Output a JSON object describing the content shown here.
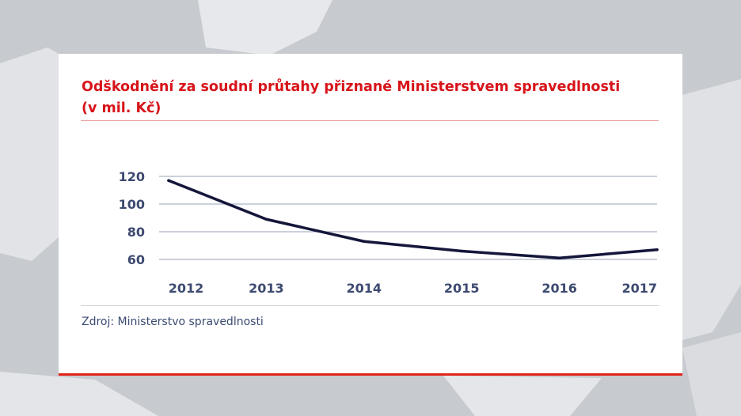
{
  "chart_data": {
    "type": "line",
    "title": "Odškodnění za soudní průtahy přiznané Ministerstvem spravedlnosti",
    "subtitle": "(v mil. Kč)",
    "categories": [
      "2012",
      "2013",
      "2014",
      "2015",
      "2016",
      "2017"
    ],
    "series": [
      {
        "values": [
          117,
          89,
          73,
          66,
          61,
          67
        ]
      }
    ],
    "yticks": [
      120,
      100,
      80,
      60
    ],
    "ylim": [
      60,
      120
    ],
    "grid": true,
    "source": "Zdroj: Ministerstvo spravedlnosti",
    "colors": {
      "line": "#14163a",
      "title": "#d7141a",
      "ticks": "#3d4a70",
      "grid": "#aeb3c7",
      "accent_rule": "#e2231a"
    }
  }
}
